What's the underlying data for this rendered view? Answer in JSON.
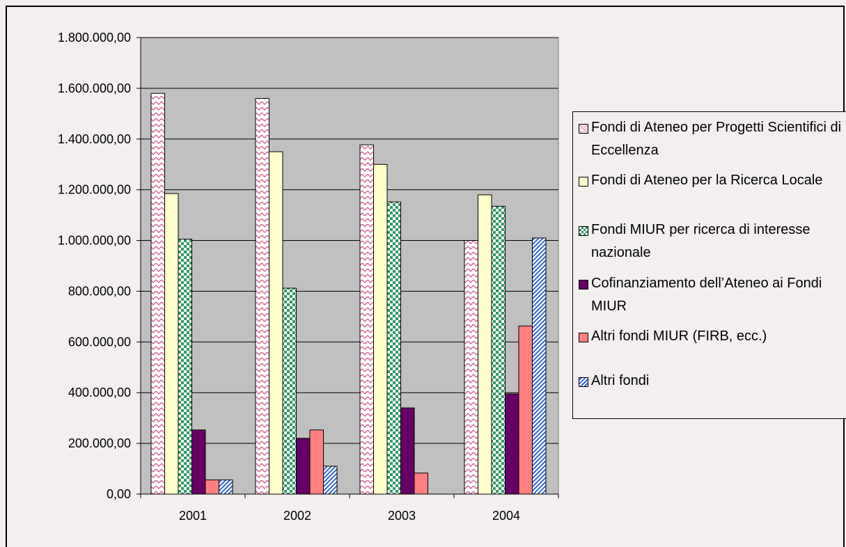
{
  "chart_data": {
    "type": "bar",
    "categories": [
      "2001",
      "2002",
      "2003",
      "2004"
    ],
    "ylim": [
      0,
      1800000
    ],
    "yticks": [
      "0,00",
      "200.000,00",
      "400.000,00",
      "600.000,00",
      "800.000,00",
      "1.000.000,00",
      "1.200.000,00",
      "1.400.000,00",
      "1.600.000,00",
      "1.800.000,00"
    ],
    "ytick_values": [
      0,
      200000,
      400000,
      600000,
      800000,
      1000000,
      1200000,
      1400000,
      1600000,
      1800000
    ],
    "grid": true,
    "legend_position": "right",
    "series": [
      {
        "name": "Fondi di Ateneo per Progetti Scientifici di Eccellenza",
        "values": [
          1580000,
          1560000,
          1377000,
          1000000
        ],
        "color": "#cc6699",
        "pattern": "zigzag"
      },
      {
        "name": "Fondi di Ateneo per la Ricerca Locale",
        "values": [
          1185000,
          1350000,
          1300000,
          1180000
        ],
        "color": "#ffffcc",
        "pattern": "solid"
      },
      {
        "name": "Fondi MIUR per ricerca di interesse nazionale",
        "values": [
          1005000,
          812000,
          1152000,
          1135000
        ],
        "color": "#339966",
        "pattern": "checker"
      },
      {
        "name": "Cofinanziamento dell’Ateneo ai Fondi MIUR",
        "values": [
          253000,
          220000,
          340000,
          395000
        ],
        "color": "#660066",
        "pattern": "solid"
      },
      {
        "name": "Altri fondi MIUR (FIRB, ecc.)",
        "values": [
          56000,
          253000,
          83000,
          663000
        ],
        "color": "#ff8080",
        "pattern": "solid"
      },
      {
        "name": "Altri fondi",
        "values": [
          56000,
          110000,
          0,
          1010000
        ],
        "color": "#3366cc",
        "pattern": "diagonal"
      }
    ]
  }
}
